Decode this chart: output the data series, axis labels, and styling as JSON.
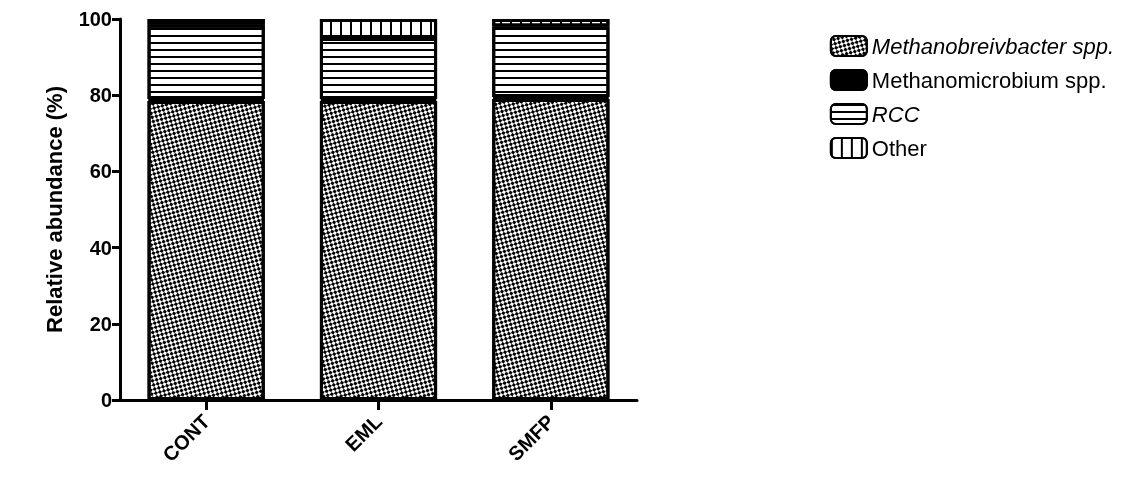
{
  "chart_data": {
    "type": "bar",
    "stacked": true,
    "ylabel": "Relative abundance (%)",
    "categories": [
      "CONT",
      "EML",
      "SMFP"
    ],
    "series": [
      {
        "name": "Methanobreivbacter spp.",
        "color": "#ffffff",
        "values": [
          78.5,
          78.5,
          79
        ]
      },
      {
        "name": "Methanomicrobium spp.",
        "color": "#000000",
        "values": [
          0.5,
          0.5,
          0.5
        ]
      },
      {
        "name": "RCC",
        "color": "#ffffff",
        "values": [
          19.5,
          16,
          18.5
        ]
      },
      {
        "name": "Other",
        "color": "#ffffff",
        "values": [
          1.5,
          5,
          2
        ]
      }
    ],
    "ylim": [
      0,
      100
    ],
    "yticks": [
      0,
      20,
      40,
      60,
      80,
      100
    ],
    "grid": false,
    "legend": "top right"
  }
}
